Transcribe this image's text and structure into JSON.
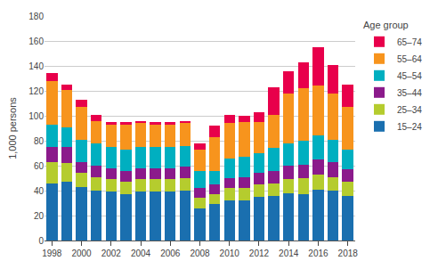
{
  "chart_data": {
    "type": "bar",
    "stacked": true,
    "categories": [
      "1998",
      null,
      "2000",
      null,
      "2002",
      null,
      "2004",
      null,
      "2006",
      null,
      "2008",
      null,
      "2010",
      null,
      "2012",
      null,
      "2014",
      null,
      "2016",
      null,
      "2018"
    ],
    "series": [
      {
        "name": "15–24",
        "color": "#1a6faf",
        "values": [
          46,
          47,
          43,
          40,
          39,
          37,
          39,
          39,
          39,
          40,
          26,
          29,
          32,
          32,
          35,
          36,
          38,
          37,
          41,
          40,
          36
        ]
      },
      {
        "name": "25–34",
        "color": "#b5cc2e",
        "values": [
          17,
          15,
          11,
          11,
          10,
          10,
          10,
          10,
          10,
          10,
          8,
          8,
          10,
          10,
          10,
          10,
          11,
          13,
          12,
          11,
          11
        ]
      },
      {
        "name": "35–44",
        "color": "#8b1a8b",
        "values": [
          12,
          13,
          9,
          9,
          9,
          9,
          9,
          9,
          9,
          9,
          8,
          8,
          8,
          9,
          9,
          10,
          11,
          11,
          12,
          12,
          10
        ]
      },
      {
        "name": "45–54",
        "color": "#00afc0",
        "values": [
          18,
          16,
          18,
          18,
          17,
          17,
          17,
          17,
          17,
          17,
          14,
          11,
          16,
          16,
          16,
          18,
          18,
          19,
          19,
          18,
          16
        ]
      },
      {
        "name": "55–64",
        "color": "#f7941d",
        "values": [
          35,
          30,
          26,
          18,
          18,
          20,
          19,
          18,
          18,
          18,
          17,
          27,
          28,
          28,
          25,
          27,
          40,
          42,
          40,
          37,
          34
        ]
      },
      {
        "name": "65–74",
        "color": "#e8004b",
        "values": [
          6,
          4,
          6,
          5,
          2,
          2,
          2,
          2,
          2,
          2,
          5,
          9,
          7,
          5,
          8,
          22,
          18,
          21,
          31,
          23,
          18
        ]
      }
    ],
    "ylabel": "1,000 persons",
    "legend_title": "Age group",
    "legend": "right",
    "ylim": [
      0,
      180
    ],
    "yticks": [
      0,
      20,
      40,
      60,
      80,
      100,
      120,
      140,
      160,
      180
    ],
    "grid": true
  }
}
